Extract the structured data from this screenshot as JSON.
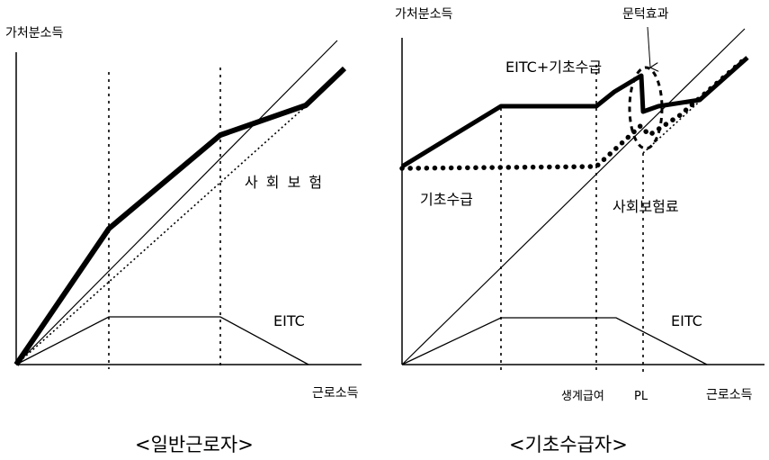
{
  "left_panel": {
    "caption": "<일반근로자>",
    "y_axis_label": "가처분소득",
    "x_axis_label": "근로소득",
    "insurance_label": "사 회 보 험",
    "eitc_label": "EITC"
  },
  "right_panel": {
    "caption": "<기초수급자>",
    "y_axis_label": "가처분소득",
    "x_axis_label": "근로소득",
    "threshold_effect_label": "문턱효과",
    "eitc_plus_label": "EITC+기초수급",
    "basic_livelihood_label": "기초수급",
    "insurance_fee_label": "사회보험료",
    "eitc_label": "EITC",
    "tick_labels": [
      "생계급여",
      "PL"
    ]
  }
}
